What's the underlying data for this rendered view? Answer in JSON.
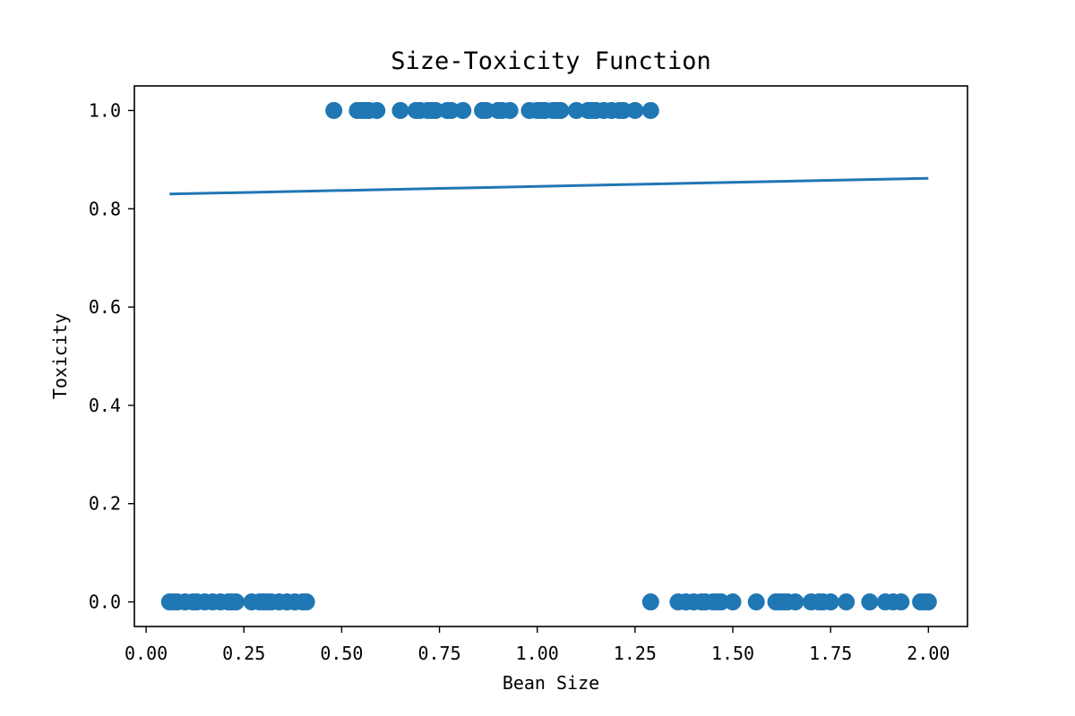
{
  "chart_data": {
    "type": "scatter",
    "title": "Size-Toxicity Function",
    "xlabel": "Bean Size",
    "ylabel": "Toxicity",
    "xlim": [
      -0.03,
      2.1
    ],
    "ylim": [
      -0.05,
      1.05
    ],
    "xticks": [
      0.0,
      0.25,
      0.5,
      0.75,
      1.0,
      1.25,
      1.5,
      1.75,
      2.0
    ],
    "xtick_labels": [
      "0.00",
      "0.25",
      "0.50",
      "0.75",
      "1.00",
      "1.25",
      "1.50",
      "1.75",
      "2.00"
    ],
    "yticks": [
      0.0,
      0.2,
      0.4,
      0.6,
      0.8,
      1.0
    ],
    "ytick_labels": [
      "0.0",
      "0.2",
      "0.4",
      "0.6",
      "0.8",
      "1.0"
    ],
    "grid": false,
    "colors": {
      "series": "#1f77b4",
      "axes": "#000000",
      "background": "#ffffff"
    },
    "series": [
      {
        "type": "scatter",
        "points": [
          [
            0.06,
            0
          ],
          [
            0.07,
            0
          ],
          [
            0.08,
            0
          ],
          [
            0.1,
            0
          ],
          [
            0.12,
            0
          ],
          [
            0.13,
            0
          ],
          [
            0.15,
            0
          ],
          [
            0.17,
            0
          ],
          [
            0.19,
            0
          ],
          [
            0.21,
            0
          ],
          [
            0.22,
            0
          ],
          [
            0.23,
            0
          ],
          [
            0.27,
            0
          ],
          [
            0.29,
            0
          ],
          [
            0.3,
            0
          ],
          [
            0.31,
            0
          ],
          [
            0.32,
            0
          ],
          [
            0.34,
            0
          ],
          [
            0.36,
            0
          ],
          [
            0.38,
            0
          ],
          [
            0.4,
            0
          ],
          [
            0.41,
            0
          ],
          [
            0.48,
            1
          ],
          [
            0.54,
            1
          ],
          [
            0.55,
            1
          ],
          [
            0.56,
            1
          ],
          [
            0.57,
            1
          ],
          [
            0.59,
            1
          ],
          [
            0.65,
            1
          ],
          [
            0.69,
            1
          ],
          [
            0.7,
            1
          ],
          [
            0.72,
            1
          ],
          [
            0.73,
            1
          ],
          [
            0.74,
            1
          ],
          [
            0.77,
            1
          ],
          [
            0.78,
            1
          ],
          [
            0.81,
            1
          ],
          [
            0.86,
            1
          ],
          [
            0.87,
            1
          ],
          [
            0.9,
            1
          ],
          [
            0.91,
            1
          ],
          [
            0.93,
            1
          ],
          [
            0.98,
            1
          ],
          [
            1.0,
            1
          ],
          [
            1.01,
            1
          ],
          [
            1.02,
            1
          ],
          [
            1.04,
            1
          ],
          [
            1.05,
            1
          ],
          [
            1.06,
            1
          ],
          [
            1.1,
            1
          ],
          [
            1.13,
            1
          ],
          [
            1.14,
            1
          ],
          [
            1.15,
            1
          ],
          [
            1.17,
            1
          ],
          [
            1.19,
            1
          ],
          [
            1.21,
            1
          ],
          [
            1.22,
            1
          ],
          [
            1.25,
            1
          ],
          [
            1.29,
            1
          ],
          [
            1.29,
            0
          ],
          [
            1.36,
            0
          ],
          [
            1.38,
            0
          ],
          [
            1.4,
            0
          ],
          [
            1.42,
            0
          ],
          [
            1.43,
            0
          ],
          [
            1.45,
            0
          ],
          [
            1.46,
            0
          ],
          [
            1.47,
            0
          ],
          [
            1.5,
            0
          ],
          [
            1.56,
            0
          ],
          [
            1.61,
            0
          ],
          [
            1.62,
            0
          ],
          [
            1.63,
            0
          ],
          [
            1.64,
            0
          ],
          [
            1.66,
            0
          ],
          [
            1.7,
            0
          ],
          [
            1.72,
            0
          ],
          [
            1.73,
            0
          ],
          [
            1.75,
            0
          ],
          [
            1.79,
            0
          ],
          [
            1.85,
            0
          ],
          [
            1.89,
            0
          ],
          [
            1.91,
            0
          ],
          [
            1.93,
            0
          ],
          [
            1.98,
            0
          ],
          [
            1.99,
            0
          ],
          [
            2.0,
            0
          ]
        ]
      },
      {
        "type": "line",
        "points": [
          [
            0.06,
            0.83
          ],
          [
            2.0,
            0.862
          ]
        ]
      }
    ]
  }
}
